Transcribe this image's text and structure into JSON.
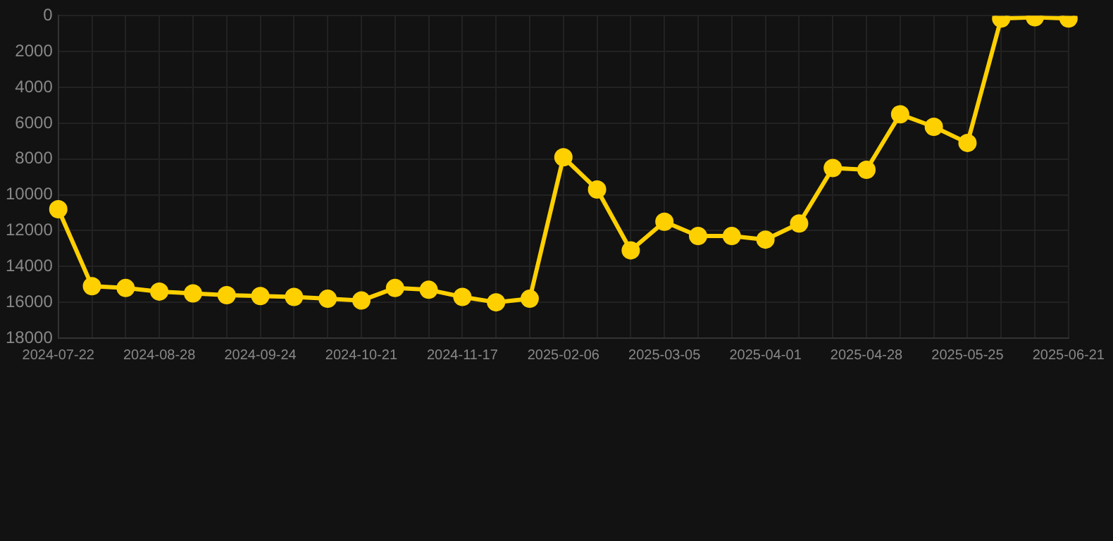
{
  "chart_data": {
    "type": "line",
    "categories": [
      "2024-07-22",
      null,
      null,
      "2024-08-28",
      null,
      null,
      "2024-09-24",
      null,
      null,
      "2024-10-21",
      null,
      null,
      "2024-11-17",
      null,
      null,
      "2025-02-06",
      null,
      null,
      "2025-03-05",
      null,
      null,
      "2025-04-01",
      null,
      null,
      "2025-04-28",
      null,
      null,
      "2025-05-25",
      null,
      null,
      "2025-06-21"
    ],
    "series": [
      {
        "color": "#ffd000",
        "values": [
          10800,
          15100,
          15200,
          15400,
          15500,
          15600,
          15650,
          15700,
          15800,
          15900,
          15200,
          15300,
          15700,
          16000,
          15800,
          7900,
          9700,
          13100,
          11500,
          12300,
          12300,
          12500,
          11600,
          8500,
          8600,
          5500,
          6200,
          7100,
          150,
          80,
          150
        ]
      }
    ],
    "ylim": [
      18000,
      0
    ],
    "yticks": [
      0,
      2000,
      4000,
      6000,
      8000,
      10000,
      12000,
      14000,
      16000,
      18000
    ],
    "grid": true,
    "marker": "circle",
    "line_style": "solid"
  }
}
